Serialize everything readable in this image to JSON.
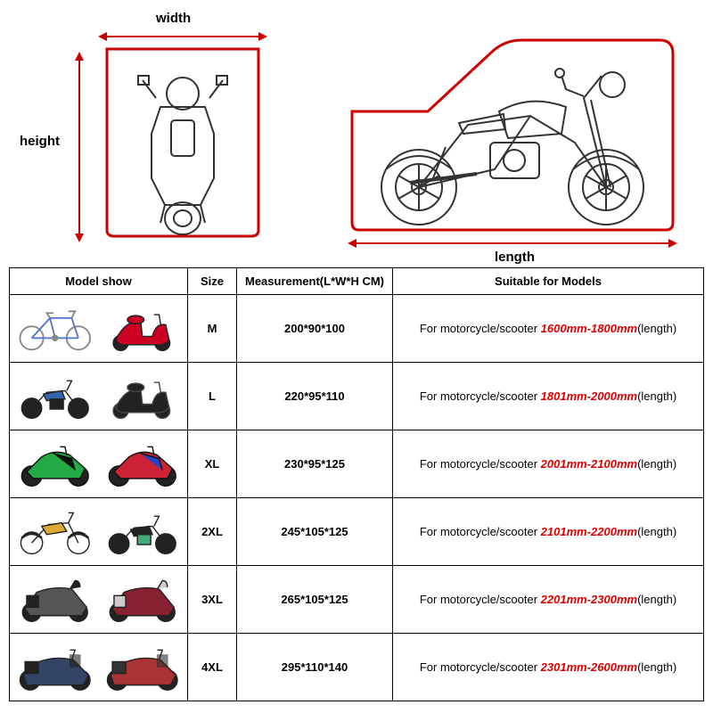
{
  "diagram": {
    "labels": {
      "width": "width",
      "height": "height",
      "length": "length"
    },
    "arrow_color": "#c00",
    "outline_color": "#c00",
    "moto_line_color": "#333"
  },
  "table": {
    "headers": {
      "model": "Model show",
      "size": "Size",
      "measurement": "Measurement(L*W*H CM)",
      "suitable": "Suitable for Models"
    },
    "suitable_prefix": "For motorcycle/scooter ",
    "suitable_suffix": "(length)",
    "rows": [
      {
        "size": "M",
        "measurement": "200*90*100",
        "range": "1600mm-1800mm",
        "thumbs": [
          {
            "type": "bicycle",
            "color1": "#5577cc",
            "color2": "#888"
          },
          {
            "type": "scooter",
            "color1": "#cc0022",
            "color2": "#222"
          }
        ]
      },
      {
        "size": "L",
        "measurement": "220*95*110",
        "range": "1801mm-2000mm",
        "thumbs": [
          {
            "type": "moto",
            "color1": "#3366aa",
            "color2": "#222"
          },
          {
            "type": "scooter",
            "color1": "#222",
            "color2": "#444"
          }
        ]
      },
      {
        "size": "XL",
        "measurement": "230*95*125",
        "range": "2001mm-2100mm",
        "thumbs": [
          {
            "type": "sport",
            "color1": "#22aa44",
            "color2": "#111"
          },
          {
            "type": "sport",
            "color1": "#cc2233",
            "color2": "#2244cc"
          }
        ]
      },
      {
        "size": "2XL",
        "measurement": "245*105*125",
        "range": "2101mm-2200mm",
        "thumbs": [
          {
            "type": "dirt",
            "color1": "#ddaa33",
            "color2": "#222"
          },
          {
            "type": "naked",
            "color1": "#222",
            "color2": "#4a7"
          }
        ]
      },
      {
        "size": "3XL",
        "measurement": "265*105*125",
        "range": "2201mm-2300mm",
        "thumbs": [
          {
            "type": "touring",
            "color1": "#555",
            "color2": "#222"
          },
          {
            "type": "maxi",
            "color1": "#882233",
            "color2": "#ccc"
          }
        ]
      },
      {
        "size": "4XL",
        "measurement": "295*110*140",
        "range": "2301mm-2600mm",
        "thumbs": [
          {
            "type": "cruiser",
            "color1": "#334466",
            "color2": "#222"
          },
          {
            "type": "cruiser",
            "color1": "#aa3333",
            "color2": "#333"
          }
        ]
      }
    ]
  },
  "style": {
    "border_color": "#000",
    "header_fontsize": 13,
    "cell_fontsize": 13,
    "range_color": "#d00",
    "background": "#ffffff"
  }
}
